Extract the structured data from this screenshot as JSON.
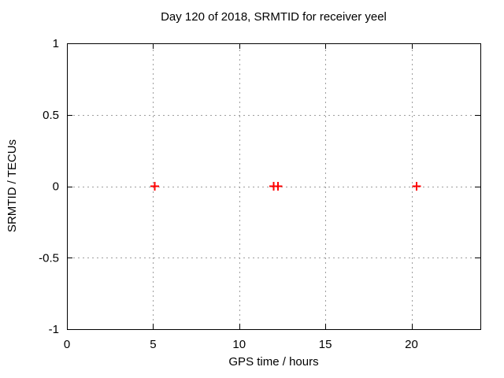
{
  "chart_data": {
    "type": "scatter",
    "title": "Day 120 of 2018, SRMTID for receiver yeel",
    "xlabel": "GPS time / hours",
    "ylabel": "SRMTID / TECUs",
    "xlim": [
      0,
      24
    ],
    "ylim": [
      -1,
      1
    ],
    "xticks": [
      0,
      5,
      10,
      15,
      20
    ],
    "xtick_labels": [
      "0",
      "5",
      "10",
      "15",
      "20"
    ],
    "yticks": [
      -1,
      -0.5,
      0,
      0.5,
      1
    ],
    "ytick_labels": [
      "-1",
      "-0.5",
      "0",
      "0.5",
      "1"
    ],
    "grid": true,
    "legend_position": "none",
    "marker": "plus",
    "marker_color": "#ff0000",
    "border_color": "#000000",
    "grid_color": "#9e9e9e",
    "background_color": "#ffffff",
    "points": [
      {
        "x": 5.1,
        "y": 0
      },
      {
        "x": 12.0,
        "y": 0
      },
      {
        "x": 12.25,
        "y": 0
      },
      {
        "x": 20.3,
        "y": 0
      }
    ]
  }
}
